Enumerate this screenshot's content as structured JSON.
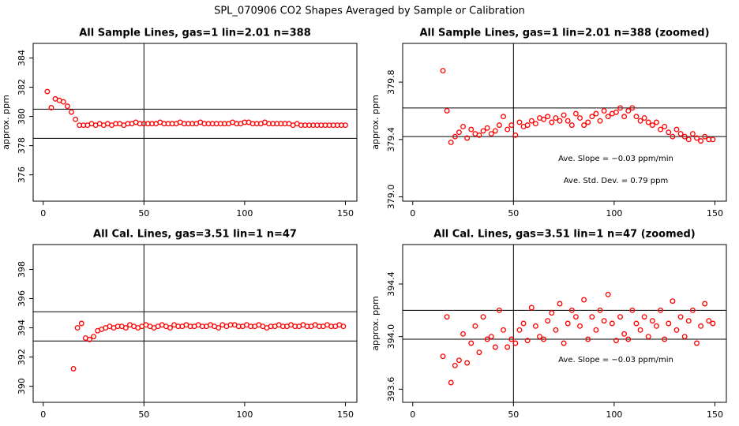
{
  "title": "SPL_070906  CO2 Shapes Averaged by Sample or Calibration",
  "chart_data": [
    {
      "type": "scatter",
      "title": "All Sample Lines, gas=1 lin=2.01 n=388",
      "ylabel": "approx. ppm",
      "color": "#ff0000",
      "xlim": [
        -5,
        155.7
      ],
      "ylim": [
        374.2,
        385
      ],
      "xticks": [
        0,
        50,
        100,
        150
      ],
      "yticks": [
        376,
        378,
        380,
        382,
        384
      ],
      "vlines": [
        50
      ],
      "hlines": [
        380.5,
        378.5
      ],
      "x": [
        2,
        4,
        6,
        8,
        10,
        12,
        14,
        16,
        18,
        20,
        22,
        24,
        26,
        28,
        30,
        32,
        34,
        36,
        38,
        40,
        42,
        44,
        46,
        48,
        50,
        52,
        54,
        56,
        58,
        60,
        62,
        64,
        66,
        68,
        70,
        72,
        74,
        76,
        78,
        80,
        82,
        84,
        86,
        88,
        90,
        92,
        94,
        96,
        98,
        100,
        102,
        104,
        106,
        108,
        110,
        112,
        114,
        116,
        118,
        120,
        122,
        124,
        126,
        128,
        130,
        132,
        134,
        136,
        138,
        140,
        142,
        144,
        146,
        148,
        150
      ],
      "values": [
        381.7,
        380.6,
        381.2,
        381.1,
        381.0,
        380.7,
        380.3,
        379.8,
        379.4,
        379.4,
        379.4,
        379.5,
        379.4,
        379.5,
        379.4,
        379.5,
        379.4,
        379.5,
        379.5,
        379.4,
        379.5,
        379.5,
        379.6,
        379.5,
        379.5,
        379.5,
        379.5,
        379.5,
        379.6,
        379.5,
        379.5,
        379.5,
        379.5,
        379.6,
        379.5,
        379.5,
        379.5,
        379.5,
        379.6,
        379.5,
        379.5,
        379.5,
        379.5,
        379.5,
        379.5,
        379.5,
        379.6,
        379.5,
        379.5,
        379.6,
        379.6,
        379.5,
        379.5,
        379.5,
        379.6,
        379.5,
        379.5,
        379.5,
        379.5,
        379.5,
        379.5,
        379.4,
        379.5,
        379.4,
        379.4,
        379.4,
        379.4,
        379.4,
        379.4,
        379.4,
        379.4,
        379.4,
        379.4,
        379.4,
        379.4
      ]
    },
    {
      "type": "scatter",
      "title": "All Sample Lines, gas=1 lin=2.01 n=388 (zoomed)",
      "ylabel": "approx. ppm",
      "color": "#ff0000",
      "xlim": [
        -5,
        155.7
      ],
      "ylim": [
        378.97,
        380.07
      ],
      "xticks": [
        0,
        50,
        100,
        150
      ],
      "yticks": [
        {
          "value": 379,
          "label": "379.0"
        },
        379.4,
        379.8
      ],
      "vlines": [
        50
      ],
      "hlines": [
        379.62,
        379.42
      ],
      "annotations": [
        "Ave. Slope = −0.03  ppm/min",
        "Ave. Std. Dev. =  0.79  ppm"
      ],
      "x": [
        15,
        17,
        19,
        21,
        23,
        25,
        27,
        29,
        31,
        33,
        35,
        37,
        39,
        41,
        43,
        45,
        47,
        49,
        51,
        53,
        55,
        57,
        59,
        61,
        63,
        65,
        67,
        69,
        71,
        73,
        75,
        77,
        79,
        81,
        83,
        85,
        87,
        89,
        91,
        93,
        95,
        97,
        99,
        101,
        103,
        105,
        107,
        109,
        111,
        113,
        115,
        117,
        119,
        121,
        123,
        125,
        127,
        129,
        131,
        133,
        135,
        137,
        139,
        141,
        143,
        145,
        147,
        149
      ],
      "values": [
        379.88,
        379.6,
        379.38,
        379.42,
        379.45,
        379.49,
        379.41,
        379.47,
        379.44,
        379.43,
        379.46,
        379.48,
        379.44,
        379.46,
        379.5,
        379.56,
        379.47,
        379.5,
        379.43,
        379.52,
        379.49,
        379.5,
        379.53,
        379.51,
        379.55,
        379.54,
        379.56,
        379.52,
        379.55,
        379.53,
        379.57,
        379.53,
        379.5,
        379.58,
        379.55,
        379.5,
        379.52,
        379.56,
        379.58,
        379.53,
        379.6,
        379.56,
        379.58,
        379.59,
        379.62,
        379.56,
        379.6,
        379.62,
        379.56,
        379.53,
        379.55,
        379.52,
        379.5,
        379.52,
        379.47,
        379.49,
        379.45,
        379.42,
        379.47,
        379.44,
        379.42,
        379.4,
        379.44,
        379.41,
        379.39,
        379.42,
        379.4,
        379.4
      ]
    },
    {
      "type": "scatter",
      "title": "All Cal. Lines, gas=3.51 lin=1 n=47",
      "color": "#ff0000",
      "xlim": [
        -5,
        155.7
      ],
      "ylim": [
        388.9,
        399.7
      ],
      "xticks": [
        0,
        50,
        100,
        150
      ],
      "yticks": [
        390,
        392,
        394,
        396,
        398
      ],
      "vlines": [
        50
      ],
      "hlines": [
        395.1,
        393.1
      ],
      "x": [
        15,
        17,
        19,
        21,
        23,
        25,
        27,
        29,
        31,
        33,
        35,
        37,
        39,
        41,
        43,
        45,
        47,
        49,
        51,
        53,
        55,
        57,
        59,
        61,
        63,
        65,
        67,
        69,
        71,
        73,
        75,
        77,
        79,
        81,
        83,
        85,
        87,
        89,
        91,
        93,
        95,
        97,
        99,
        101,
        103,
        105,
        107,
        109,
        111,
        113,
        115,
        117,
        119,
        121,
        123,
        125,
        127,
        129,
        131,
        133,
        135,
        137,
        139,
        141,
        143,
        145,
        147,
        149
      ],
      "values": [
        391.2,
        394.0,
        394.3,
        393.3,
        393.2,
        393.4,
        393.8,
        393.9,
        394.0,
        394.1,
        394.0,
        394.1,
        394.1,
        394.0,
        394.2,
        394.1,
        394.0,
        394.1,
        394.2,
        394.1,
        394.0,
        394.1,
        394.2,
        394.1,
        394.0,
        394.2,
        394.1,
        394.1,
        394.2,
        394.1,
        394.1,
        394.2,
        394.1,
        394.1,
        394.2,
        394.1,
        394.0,
        394.2,
        394.1,
        394.2,
        394.2,
        394.1,
        394.1,
        394.2,
        394.1,
        394.1,
        394.2,
        394.1,
        394.0,
        394.1,
        394.1,
        394.2,
        394.1,
        394.1,
        394.2,
        394.1,
        394.1,
        394.2,
        394.1,
        394.1,
        394.2,
        394.1,
        394.1,
        394.2,
        394.1,
        394.1,
        394.2,
        394.1
      ]
    },
    {
      "type": "scatter",
      "title": "All Cal. Lines, gas=3.51 lin=1 n=47 (zoomed)",
      "ylabel": "approx. ppm",
      "color": "#ff0000",
      "xlim": [
        -5,
        155.7
      ],
      "ylim": [
        393.5,
        394.7
      ],
      "xticks": [
        0,
        50,
        100,
        150
      ],
      "yticks": [
        393.6,
        {
          "value": 394,
          "label": "394.0"
        },
        394.4
      ],
      "vlines": [
        50
      ],
      "hlines": [
        394.2,
        393.98
      ],
      "annotations": [
        "Ave. Slope = −0.03  ppm/min"
      ],
      "x": [
        15,
        17,
        19,
        21,
        23,
        25,
        27,
        29,
        31,
        33,
        35,
        37,
        39,
        41,
        43,
        45,
        47,
        49,
        51,
        53,
        55,
        57,
        59,
        61,
        63,
        65,
        67,
        69,
        71,
        73,
        75,
        77,
        79,
        81,
        83,
        85,
        87,
        89,
        91,
        93,
        95,
        97,
        99,
        101,
        103,
        105,
        107,
        109,
        111,
        113,
        115,
        117,
        119,
        121,
        123,
        125,
        127,
        129,
        131,
        133,
        135,
        137,
        139,
        141,
        143,
        145,
        147,
        149
      ],
      "values": [
        393.85,
        394.15,
        393.65,
        393.78,
        393.82,
        394.02,
        393.8,
        393.95,
        394.08,
        393.88,
        394.15,
        393.98,
        394.0,
        393.92,
        394.2,
        394.05,
        393.92,
        393.98,
        393.95,
        394.05,
        394.1,
        393.97,
        394.22,
        394.08,
        394.0,
        393.98,
        394.12,
        394.18,
        394.05,
        394.25,
        393.95,
        394.1,
        394.2,
        394.15,
        394.08,
        394.28,
        393.98,
        394.15,
        394.05,
        394.2,
        394.12,
        394.32,
        394.1,
        393.97,
        394.15,
        394.02,
        393.98,
        394.2,
        394.1,
        394.05,
        394.15,
        394.0,
        394.12,
        394.08,
        394.2,
        393.98,
        394.1,
        394.27,
        394.05,
        394.15,
        394.0,
        394.12,
        394.2,
        393.95,
        394.08,
        394.25,
        394.12,
        394.1
      ]
    }
  ]
}
